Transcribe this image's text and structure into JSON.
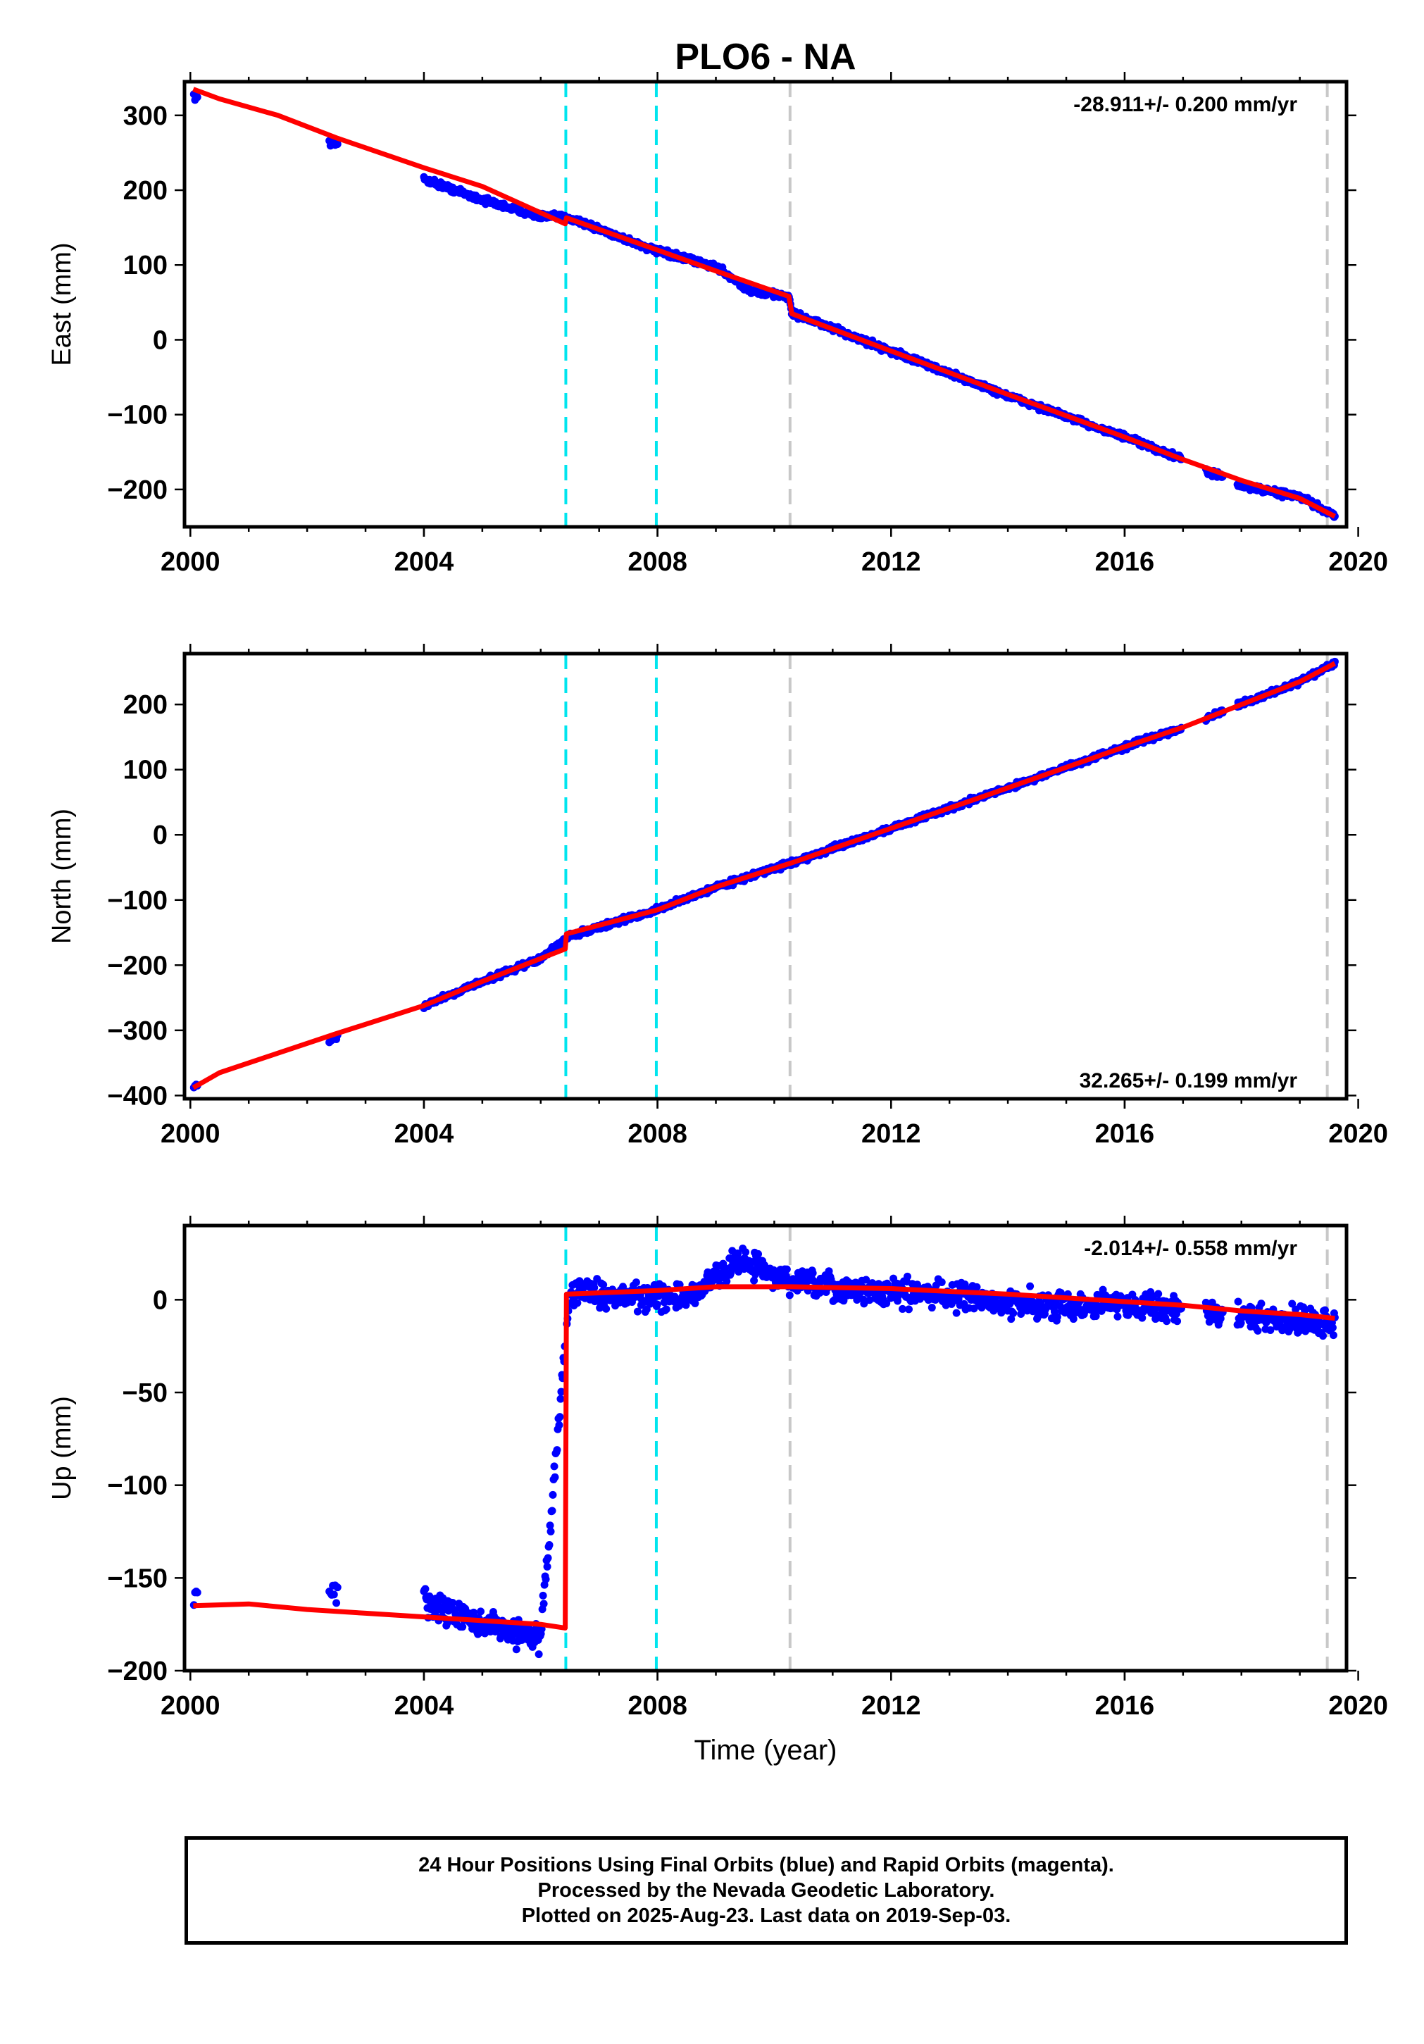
{
  "colors": {
    "final_orbits": "#0000ff",
    "model": "#ff0000",
    "steps_equipment": "#00e5ee",
    "steps_earthquake": "#c8c8c8",
    "frame": "#000000"
  },
  "chart_data": [
    {
      "type": "scatter",
      "title": "PLO6 - NA",
      "xlabel": "",
      "ylabel": "East (mm)",
      "xlim": [
        1999.9,
        2019.8
      ],
      "ylim": [
        -250,
        345
      ],
      "xticks": [
        2000,
        2004,
        2008,
        2012,
        2016,
        2020
      ],
      "yticks": [
        300,
        200,
        100,
        0,
        -100,
        -200
      ],
      "rate_label": "-28.911+/- 0.200 mm/yr",
      "rate_position": "top-right",
      "equipment_steps": [
        2006.43,
        2007.98
      ],
      "earthquake_steps": [
        2010.27,
        2019.47
      ],
      "series": [
        {
          "name": "",
          "kind": "observations",
          "x": [
            2000.05,
            2002.45,
            2004.0,
            2005.0,
            2006.0,
            2006.5,
            2008.0,
            2009.0,
            2009.6,
            2010.25,
            2010.3,
            2012.0,
            2014.0,
            2016.0,
            2017.0,
            2017.5,
            2018.0,
            2019.0,
            2019.6
          ],
          "y": [
            327,
            262,
            215,
            187,
            165,
            163,
            118,
            98,
            65,
            58,
            36,
            -15,
            -75,
            -130,
            -160,
            -178,
            -195,
            -210,
            -236
          ]
        },
        {
          "name": "",
          "kind": "model",
          "x": [
            2000.05,
            2000.5,
            2001.5,
            2002.5,
            2004.0,
            2005.0,
            2006.42,
            2006.44,
            2008.0,
            2009.0,
            2010.25,
            2010.3,
            2012.0,
            2014.0,
            2016.0,
            2017.0,
            2018.0,
            2019.0,
            2019.6
          ],
          "y": [
            335,
            322,
            300,
            270,
            230,
            205,
            155,
            163,
            120,
            92,
            58,
            35,
            -15,
            -73,
            -130,
            -160,
            -188,
            -212,
            -236
          ]
        }
      ]
    },
    {
      "type": "scatter",
      "title": "",
      "xlabel": "",
      "ylabel": "North (mm)",
      "xlim": [
        1999.9,
        2019.8
      ],
      "ylim": [
        -405,
        278
      ],
      "xticks": [
        2000,
        2004,
        2008,
        2012,
        2016,
        2020
      ],
      "yticks": [
        200,
        100,
        0,
        -100,
        -200,
        -300,
        -400
      ],
      "rate_label": "32.265+/- 0.199 mm/yr",
      "rate_position": "bottom-right",
      "equipment_steps": [
        2006.43,
        2007.98
      ],
      "earthquake_steps": [
        2010.27,
        2019.47
      ],
      "series": [
        {
          "name": "",
          "kind": "observations",
          "x": [
            2000.05,
            2002.45,
            2004.0,
            2005.0,
            2006.0,
            2006.5,
            2008.0,
            2009.0,
            2010.3,
            2012.0,
            2014.0,
            2016.0,
            2017.0,
            2018.0,
            2019.0,
            2019.6
          ],
          "y": [
            -388,
            -312,
            -262,
            -225,
            -190,
            -155,
            -115,
            -80,
            -43,
            10,
            72,
            135,
            165,
            200,
            235,
            263
          ]
        },
        {
          "name": "",
          "kind": "model",
          "x": [
            2000.05,
            2000.5,
            2001.5,
            2002.5,
            2004.0,
            2005.0,
            2006.42,
            2006.44,
            2008.0,
            2009.0,
            2010.3,
            2012.0,
            2014.0,
            2016.0,
            2017.0,
            2018.0,
            2019.0,
            2019.6
          ],
          "y": [
            -388,
            -365,
            -335,
            -305,
            -262,
            -225,
            -175,
            -152,
            -115,
            -80,
            -43,
            10,
            72,
            135,
            165,
            200,
            235,
            263
          ]
        }
      ]
    },
    {
      "type": "scatter",
      "title": "",
      "xlabel": "Time (year)",
      "ylabel": "Up (mm)",
      "xlim": [
        1999.9,
        2019.8
      ],
      "ylim": [
        -200,
        40
      ],
      "xticks": [
        2000,
        2004,
        2008,
        2012,
        2016,
        2020
      ],
      "yticks": [
        0,
        -50,
        -100,
        -150,
        -200
      ],
      "rate_label": "-2.014+/- 0.558 mm/yr",
      "rate_position": "top-right",
      "equipment_steps": [
        2006.43,
        2007.98
      ],
      "earthquake_steps": [
        2010.27,
        2019.47
      ],
      "series": [
        {
          "name": "",
          "kind": "observations",
          "x": [
            2000.05,
            2002.45,
            2004.0,
            2005.0,
            2006.0,
            2006.5,
            2007.5,
            2008.5,
            2009.4,
            2009.7,
            2010.0,
            2011.0,
            2012.0,
            2013.0,
            2014.0,
            2015.0,
            2016.0,
            2017.0,
            2017.5,
            2018.5,
            2019.6
          ],
          "y": [
            -160,
            -158,
            -163,
            -175,
            -182,
            5,
            2,
            0,
            22,
            18,
            12,
            6,
            4,
            3,
            -2,
            -3,
            -2,
            -5,
            -8,
            -10,
            -12
          ]
        },
        {
          "name": "",
          "kind": "model",
          "x": [
            2000.05,
            2001.0,
            2002.0,
            2003.0,
            2004.0,
            2005.0,
            2006.0,
            2006.42,
            2006.44,
            2008.0,
            2009.0,
            2010.3,
            2012.0,
            2014.0,
            2016.0,
            2017.0,
            2018.0,
            2019.0,
            2019.6
          ],
          "y": [
            -165,
            -164,
            -167,
            -169,
            -171,
            -173,
            -175,
            -177,
            3,
            5,
            7,
            7,
            6,
            3,
            -1,
            -3,
            -6,
            -8,
            -10
          ]
        }
      ]
    }
  ],
  "footer": {
    "line1": "24 Hour Positions Using Final Orbits (blue) and Rapid Orbits (magenta).",
    "line2": "Processed by the Nevada Geodetic Laboratory.",
    "line3": "Plotted on 2025-Aug-23. Last data on 2019-Sep-03."
  }
}
